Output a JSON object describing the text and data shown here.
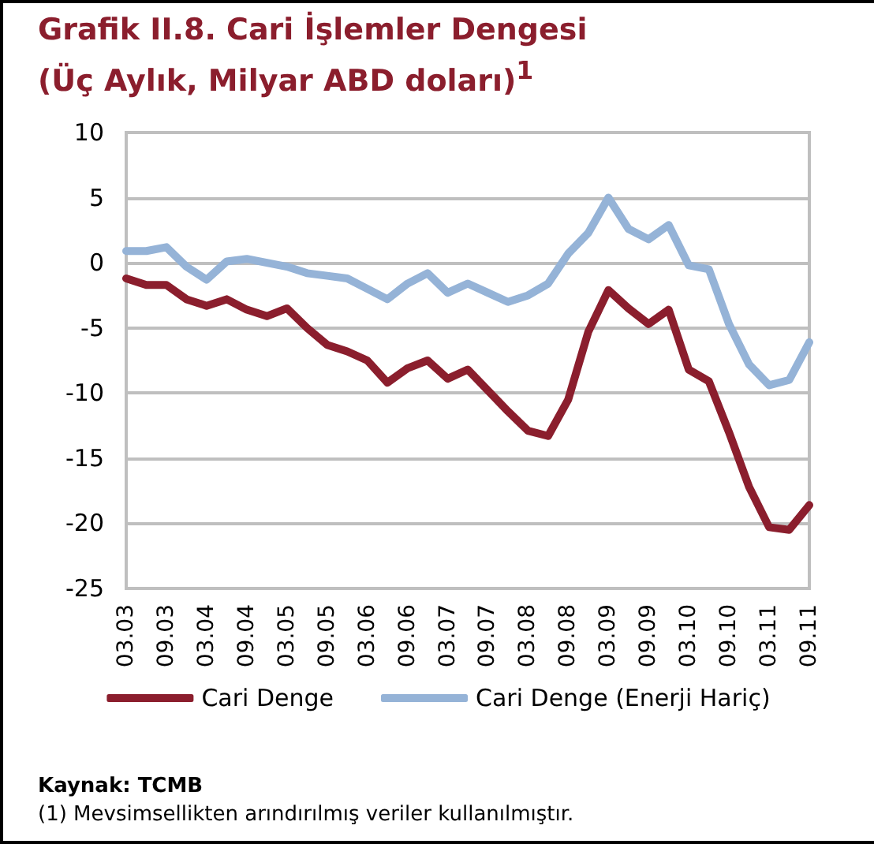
{
  "chart_data": {
    "type": "line",
    "title": "Grafik II.8. Cari İşlemler Dengesi",
    "subtitle": "(Üç Aylık, Milyar ABD doları)$^{1}$",
    "categories": [
      "03.03",
      null,
      "09.03",
      null,
      "03.04",
      null,
      "09.04",
      null,
      "03.05",
      null,
      "09.05",
      null,
      "03.06",
      null,
      "09.06",
      null,
      "03.07",
      null,
      "09.07",
      null,
      "03.08",
      null,
      "09.08",
      null,
      "03.09",
      null,
      "09.09",
      null,
      "03.10",
      null,
      "09.10",
      null,
      "03.11",
      null,
      "09.11"
    ],
    "series": [
      {
        "name": "Cari Denge",
        "color": "#8b1e2d",
        "values": [
          -1.2,
          -1.7,
          -1.7,
          -2.8,
          -3.3,
          -2.8,
          -3.6,
          -4.1,
          -3.5,
          -5.0,
          -6.3,
          -6.8,
          -7.5,
          -9.2,
          -8.1,
          -7.5,
          -8.9,
          -8.2,
          -9.8,
          -11.4,
          -12.9,
          -13.3,
          -10.5,
          -5.3,
          -2.1,
          -3.5,
          -4.7,
          -3.6,
          -8.2,
          -9.1,
          -13.0,
          -17.2,
          -20.3,
          -20.5,
          -18.6
        ]
      },
      {
        "name": "Cari Denge (Enerji Hariç)",
        "color": "#95b3d7",
        "values": [
          0.9,
          0.9,
          1.2,
          -0.3,
          -1.3,
          0.1,
          0.3,
          0.0,
          -0.3,
          -0.8,
          -1.0,
          -1.2,
          -2.0,
          -2.8,
          -1.6,
          -0.8,
          -2.3,
          -1.6,
          -2.3,
          -3.0,
          -2.5,
          -1.6,
          0.7,
          2.3,
          5.0,
          2.6,
          1.8,
          2.9,
          -0.2,
          -0.5,
          -4.7,
          -7.8,
          -9.4,
          -9.0,
          -6.1
        ]
      }
    ],
    "ylim": [
      -25,
      10
    ],
    "yticks": [
      -25,
      -20,
      -15,
      -10,
      -5,
      0,
      5,
      10
    ],
    "grid": "y",
    "legend": "bottom",
    "marker": "none",
    "line_style": "solid",
    "annotations": [
      "Kaynak: TCMB",
      "(1) Mevsimsellikten arındırılmış veriler kullanılmıştır."
    ]
  }
}
